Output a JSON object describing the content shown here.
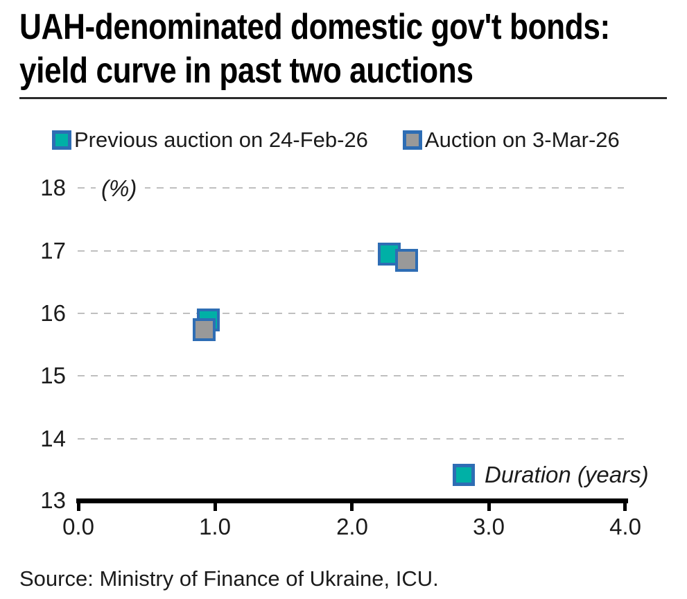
{
  "title": {
    "line1": "UAH-denominated domestic gov't bonds:",
    "line2": "yield curve in past two auctions"
  },
  "legend": {
    "previous_label": "Previous auction on 24-Feb-26",
    "current_label": "Auction on 3-Mar-26"
  },
  "axis_note": "(%)",
  "y_axis": {
    "ticks": [
      "18",
      "17",
      "16",
      "15",
      "14",
      "13"
    ]
  },
  "x_axis": {
    "ticks": [
      "0.0",
      "1.0",
      "2.0",
      "3.0",
      "4.0"
    ],
    "label": "Duration (years)"
  },
  "source": "Source: Ministry of Finance of Ukraine, ICU.",
  "colors": {
    "teal": "#00B0A6",
    "gray": "#999999",
    "marker_border": "#2E6DB4",
    "gridline": "#BFBFBF",
    "axis": "#000000",
    "text": "#1B1B1B"
  },
  "chart_data": {
    "type": "scatter",
    "title": "UAH-denominated domestic gov't bonds: yield curve in past two auctions",
    "xlabel": "Duration (years)",
    "ylabel": "(%)",
    "xlim": [
      0.0,
      4.0
    ],
    "ylim": [
      13,
      18
    ],
    "x_ticks": [
      0.0,
      1.0,
      2.0,
      3.0,
      4.0
    ],
    "y_ticks": [
      13,
      14,
      15,
      16,
      17,
      18
    ],
    "grid": "horizontal-dashed",
    "legend_position": "top",
    "marker": "square",
    "series": [
      {
        "name": "Previous auction on 24-Feb-26",
        "color": "#00B0A6",
        "points": [
          {
            "x": 0.95,
            "y": 15.9
          },
          {
            "x": 2.27,
            "y": 16.95
          }
        ]
      },
      {
        "name": "Auction on 3-Mar-26",
        "color": "#999999",
        "points": [
          {
            "x": 0.92,
            "y": 15.75
          },
          {
            "x": 2.4,
            "y": 16.85
          }
        ]
      }
    ]
  }
}
